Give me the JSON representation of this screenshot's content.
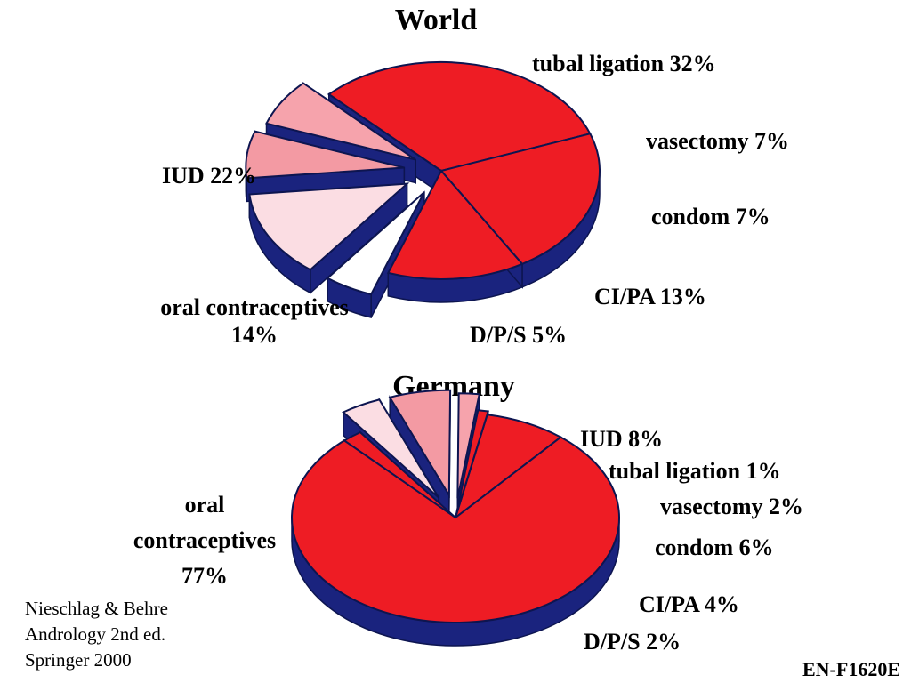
{
  "chart_data": [
    {
      "type": "pie",
      "title": "World",
      "slices": [
        {
          "label": "tubal ligation",
          "value": 32,
          "pct": "32%",
          "color": "#ee1c24"
        },
        {
          "label": "vasectomy",
          "value": 7,
          "pct": "7%",
          "color": "#f6a3ac"
        },
        {
          "label": "condom",
          "value": 7,
          "pct": "7%",
          "color": "#f39aa3"
        },
        {
          "label": "CI/PA",
          "value": 13,
          "pct": "13%",
          "color": "#fbdde3"
        },
        {
          "label": "D/P/S",
          "value": 5,
          "pct": "5%",
          "color": "#ffffff"
        },
        {
          "label": "oral contraceptives",
          "value": 14,
          "pct": "14%",
          "color": "#ee1c24"
        },
        {
          "label": "IUD",
          "value": 22,
          "pct": "22%",
          "color": "#ee1c24"
        }
      ]
    },
    {
      "type": "pie",
      "title": "Germany",
      "slices": [
        {
          "label": "IUD",
          "value": 8,
          "pct": "8%",
          "color": "#ee1c24"
        },
        {
          "label": "tubal ligation",
          "value": 1,
          "pct": "1%",
          "color": "#ee1c24"
        },
        {
          "label": "vasectomy",
          "value": 2,
          "pct": "2%",
          "color": "#f6a3ac"
        },
        {
          "label": "condom",
          "value": 6,
          "pct": "6%",
          "color": "#f39aa3"
        },
        {
          "label": "CI/PA",
          "value": 4,
          "pct": "4%",
          "color": "#fbdde3"
        },
        {
          "label": "D/P/S",
          "value": 2,
          "pct": "2%",
          "color": "#ee1c24"
        },
        {
          "label": "oral contraceptives",
          "value": 77,
          "pct": "77%",
          "color": "#ee1c24"
        }
      ]
    }
  ],
  "labels": {
    "world_tubal": "tubal ligation 32%",
    "world_vasectomy": "vasectomy 7%",
    "world_condom": "condom 7%",
    "world_cipa": "CI/PA 13%",
    "world_dps": "D/P/S 5%",
    "world_oral_line1": "oral contraceptives",
    "world_oral_line2": "14%",
    "world_iud": "IUD 22%",
    "de_iud": "IUD 8%",
    "de_tubal": "tubal ligation 1%",
    "de_vasectomy": "vasectomy 2%",
    "de_condom": "condom 6%",
    "de_cipa": "CI/PA 4%",
    "de_dps": "D/P/S 2%",
    "de_oral_line1": "oral",
    "de_oral_line2": "contraceptives",
    "de_oral_line3": "77%"
  },
  "source": {
    "line1": "Nieschlag & Behre",
    "line2": "Andrology 2nd ed.",
    "line3": "Springer 2000"
  },
  "code": "EN-F1620E",
  "colors": {
    "side": "#1a237e",
    "outline": "#0d1550"
  }
}
